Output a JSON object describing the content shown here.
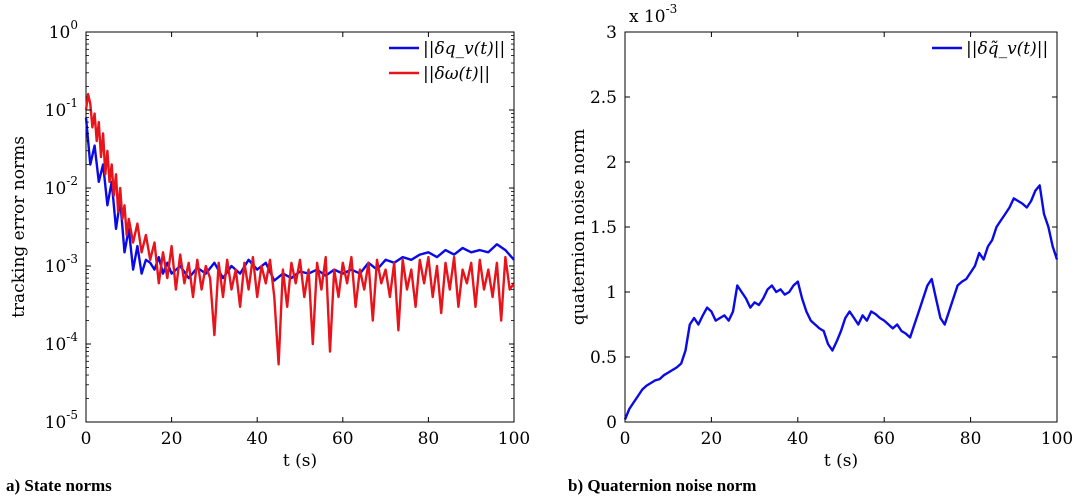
{
  "colors": {
    "blue": "#0a0ae6",
    "red": "#e8141c",
    "axis": "#000000"
  },
  "captions": {
    "a": "a) State norms",
    "b": "b) Quaternion noise norm"
  },
  "chart_data": [
    {
      "type": "line",
      "yscale": "log",
      "xlabel": "t (s)",
      "ylabel": "tracking error norms",
      "xlim": [
        0,
        100
      ],
      "ylim": [
        1e-05,
        1
      ],
      "xticks": [
        0,
        20,
        40,
        60,
        80,
        100
      ],
      "yticks": [
        {
          "value": 1,
          "base": "10",
          "exp": "0"
        },
        {
          "value": 0.1,
          "base": "10",
          "exp": "-1"
        },
        {
          "value": 0.01,
          "base": "10",
          "exp": "-2"
        },
        {
          "value": 0.001,
          "base": "10",
          "exp": "-3"
        },
        {
          "value": 0.0001,
          "base": "10",
          "exp": "-4"
        },
        {
          "value": 1e-05,
          "base": "10",
          "exp": "-5"
        }
      ],
      "legend_position": "top-right",
      "series": [
        {
          "name": "||δq_v(t)||",
          "legend_label": "||δq_v(t)||",
          "color": "#0a0ae6",
          "x": [
            0,
            1,
            2,
            3,
            4,
            5,
            6,
            7,
            8,
            9,
            10,
            11,
            12,
            13,
            14,
            15,
            16,
            17,
            18,
            19,
            20,
            22,
            24,
            26,
            28,
            30,
            32,
            34,
            36,
            38,
            40,
            42,
            44,
            46,
            48,
            50,
            52,
            54,
            56,
            58,
            60,
            62,
            64,
            66,
            68,
            70,
            72,
            74,
            76,
            78,
            80,
            82,
            84,
            86,
            88,
            90,
            92,
            94,
            96,
            98,
            100
          ],
          "y": [
            0.08,
            0.02,
            0.035,
            0.012,
            0.02,
            0.006,
            0.012,
            0.003,
            0.007,
            0.0015,
            0.003,
            0.0009,
            0.0018,
            0.0008,
            0.0012,
            0.0011,
            0.0009,
            0.0013,
            0.0008,
            0.0011,
            0.0008,
            0.001,
            0.0007,
            0.00095,
            0.0008,
            0.0011,
            0.0007,
            0.001,
            0.0008,
            0.0012,
            0.0009,
            0.0011,
            0.00065,
            0.0008,
            0.0007,
            0.00085,
            0.0008,
            0.0009,
            0.00075,
            0.0009,
            0.0008,
            0.0009,
            0.0008,
            0.0011,
            0.0009,
            0.0012,
            0.0011,
            0.0013,
            0.0012,
            0.0014,
            0.0015,
            0.0013,
            0.0016,
            0.0014,
            0.0017,
            0.0015,
            0.0016,
            0.0015,
            0.0019,
            0.0016,
            0.0012
          ]
        },
        {
          "name": "||δω(t)||",
          "legend_label": "||δω(t)||",
          "color": "#e8141c",
          "x": [
            0,
            0.5,
            1,
            1.5,
            2,
            2.5,
            3,
            3.5,
            4,
            4.5,
            5,
            5.5,
            6,
            6.5,
            7,
            7.5,
            8,
            8.5,
            9,
            9.5,
            10,
            11,
            12,
            13,
            14,
            15,
            16,
            17,
            18,
            19,
            20,
            21,
            22,
            23,
            24,
            25,
            26,
            27,
            28,
            29,
            30,
            31,
            32,
            33,
            34,
            35,
            36,
            37,
            38,
            39,
            40,
            41,
            42,
            43,
            44,
            45,
            46,
            47,
            48,
            49,
            50,
            51,
            52,
            53,
            54,
            55,
            56,
            57,
            58,
            59,
            60,
            61,
            62,
            63,
            64,
            65,
            66,
            67,
            68,
            69,
            70,
            71,
            72,
            73,
            74,
            75,
            76,
            77,
            78,
            79,
            80,
            81,
            82,
            83,
            84,
            85,
            86,
            87,
            88,
            89,
            90,
            91,
            92,
            93,
            94,
            95,
            96,
            97,
            98,
            99,
            100
          ],
          "y": [
            0.1,
            0.16,
            0.12,
            0.06,
            0.09,
            0.04,
            0.07,
            0.025,
            0.05,
            0.015,
            0.03,
            0.012,
            0.02,
            0.008,
            0.015,
            0.005,
            0.01,
            0.004,
            0.006,
            0.0025,
            0.004,
            0.002,
            0.0035,
            0.0015,
            0.0025,
            0.0012,
            0.002,
            0.0006,
            0.0015,
            0.0007,
            0.0018,
            0.0005,
            0.0014,
            0.0006,
            0.0011,
            0.0004,
            0.0012,
            0.0005,
            0.001,
            0.0007,
            0.00013,
            0.0011,
            0.0004,
            0.0012,
            0.0005,
            0.0009,
            0.0003,
            0.0011,
            0.0005,
            0.0013,
            0.0004,
            0.001,
            0.0006,
            0.0012,
            0.0004,
            5.5e-05,
            0.0009,
            0.0003,
            0.0011,
            0.0006,
            0.0012,
            0.0004,
            0.0009,
            0.0001,
            0.0011,
            0.0005,
            0.0013,
            8e-05,
            0.0009,
            0.0004,
            0.0011,
            0.0006,
            0.0013,
            0.0003,
            0.0009,
            0.0005,
            0.0011,
            0.0002,
            0.0012,
            0.0006,
            0.0009,
            0.0004,
            0.0011,
            0.00015,
            0.0012,
            0.0005,
            0.0009,
            0.0003,
            0.0012,
            0.0006,
            0.0013,
            0.0004,
            0.001,
            0.00025,
            0.0011,
            0.0005,
            0.0013,
            0.0003,
            0.0009,
            0.0006,
            0.0011,
            0.0003,
            0.0012,
            0.0005,
            0.0009,
            0.0004,
            0.0011,
            0.0002,
            0.0013,
            0.0005,
            0.0006
          ]
        }
      ]
    },
    {
      "type": "line",
      "xlabel": "t (s)",
      "ylabel": "quaternion noise norm",
      "xlim": [
        0,
        100
      ],
      "ylim": [
        0,
        3
      ],
      "xticks": [
        0,
        20,
        40,
        60,
        80,
        100
      ],
      "yticks": [
        0,
        0.5,
        1,
        1.5,
        2,
        2.5,
        3
      ],
      "ytick_labels": [
        "0",
        "0.5",
        "1",
        "1.5",
        "2",
        "2.5",
        "3"
      ],
      "y_multiplier": {
        "base": "x 10",
        "exp": "-3"
      },
      "legend_position": "top-right",
      "series": [
        {
          "name": "||δq̃_v(t)||",
          "legend_label": "||δq̃_v(t)||",
          "color": "#0a0ae6",
          "x": [
            0,
            1,
            2,
            3,
            4,
            5,
            6,
            7,
            8,
            9,
            10,
            11,
            12,
            13,
            14,
            15,
            16,
            17,
            18,
            19,
            20,
            21,
            22,
            23,
            24,
            25,
            26,
            27,
            28,
            29,
            30,
            31,
            32,
            33,
            34,
            35,
            36,
            37,
            38,
            39,
            40,
            41,
            42,
            43,
            44,
            45,
            46,
            47,
            48,
            49,
            50,
            51,
            52,
            53,
            54,
            55,
            56,
            57,
            58,
            59,
            60,
            61,
            62,
            63,
            64,
            65,
            66,
            67,
            68,
            69,
            70,
            71,
            72,
            73,
            74,
            75,
            76,
            77,
            78,
            79,
            80,
            81,
            82,
            83,
            84,
            85,
            86,
            87,
            88,
            89,
            90,
            91,
            92,
            93,
            94,
            95,
            96,
            97,
            98,
            99,
            100
          ],
          "y": [
            0.02,
            0.1,
            0.15,
            0.2,
            0.25,
            0.28,
            0.3,
            0.32,
            0.33,
            0.36,
            0.38,
            0.4,
            0.42,
            0.45,
            0.55,
            0.75,
            0.8,
            0.75,
            0.82,
            0.88,
            0.85,
            0.78,
            0.8,
            0.82,
            0.78,
            0.85,
            1.05,
            1.0,
            0.95,
            0.88,
            0.92,
            0.9,
            0.95,
            1.02,
            1.05,
            1.0,
            1.02,
            0.98,
            1.0,
            1.05,
            1.08,
            0.95,
            0.85,
            0.78,
            0.75,
            0.72,
            0.7,
            0.6,
            0.55,
            0.62,
            0.7,
            0.8,
            0.85,
            0.8,
            0.75,
            0.82,
            0.78,
            0.85,
            0.83,
            0.8,
            0.78,
            0.75,
            0.72,
            0.75,
            0.7,
            0.68,
            0.65,
            0.75,
            0.85,
            0.95,
            1.05,
            1.1,
            0.95,
            0.8,
            0.75,
            0.85,
            0.95,
            1.05,
            1.08,
            1.1,
            1.15,
            1.2,
            1.3,
            1.25,
            1.35,
            1.4,
            1.5,
            1.55,
            1.6,
            1.65,
            1.72,
            1.7,
            1.68,
            1.65,
            1.7,
            1.78,
            1.82,
            1.6,
            1.5,
            1.35,
            1.25
          ]
        }
      ]
    }
  ]
}
